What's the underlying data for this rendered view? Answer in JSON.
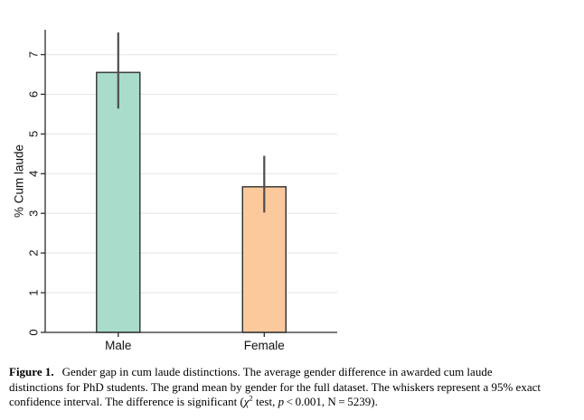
{
  "chart_data": {
    "type": "bar",
    "title": "",
    "xlabel": "",
    "ylabel": "% Cum laude",
    "categories": [
      "Male",
      "Female"
    ],
    "values": [
      6.55,
      3.67
    ],
    "error_low": [
      5.64,
      3.02
    ],
    "error_high": [
      7.56,
      4.45
    ],
    "ylim": [
      0,
      7.58
    ],
    "yticks": [
      0,
      1,
      2,
      3,
      4,
      5,
      6,
      7
    ],
    "grid": true,
    "legend": false,
    "bar_colors": [
      "#a9dcca",
      "#fcc99c"
    ],
    "bar_edge_color": "#2f2f2f",
    "error_bar_color": "#4d4d4d",
    "gridline_color": "#ebebeb",
    "axis_color": "#2b2b2b",
    "text_color": "#111111"
  },
  "caption": {
    "label": "Figure 1.",
    "line1": "Gender gap in cum laude distinctions. The average gender difference in awarded cum laude",
    "line2": "distinctions for PhD students. The grand mean by gender for the full dataset. The whiskers represent a 95% exact",
    "line3_start": "confidence interval. The difference is significant (",
    "chi": "χ",
    "chi_sup": "2",
    "line3_mid": " test, ",
    "p": "p",
    "line3_end": " < 0.001, N = 5239)."
  }
}
